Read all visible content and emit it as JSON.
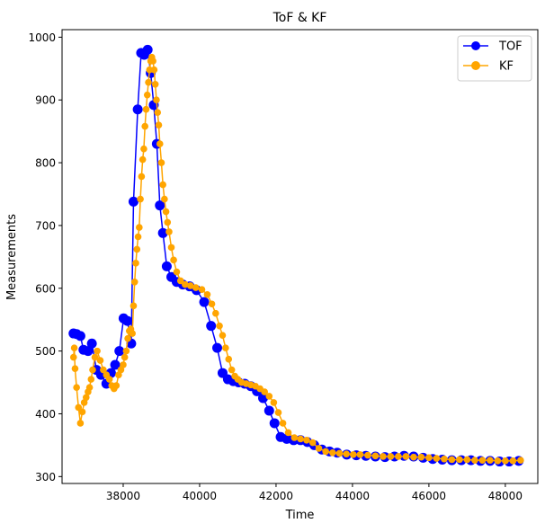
{
  "chart_data": {
    "type": "line",
    "title": "ToF & KF",
    "xlabel": "Time",
    "ylabel": "Measurements",
    "xlim": [
      36400,
      48850
    ],
    "ylim": [
      289,
      1012
    ],
    "xticks": [
      38000,
      40000,
      42000,
      44000,
      46000,
      48000
    ],
    "yticks": [
      300,
      400,
      500,
      600,
      700,
      800,
      900,
      1000
    ],
    "grid": false,
    "legend_position": "top-right",
    "series": [
      {
        "name": "TOF",
        "color": "#0000ff",
        "marker_radius": 5.5,
        "x": [
          36700,
          36780,
          36880,
          36960,
          37080,
          37180,
          37300,
          37420,
          37560,
          37680,
          37790,
          37900,
          38010,
          38110,
          38210,
          38270,
          38380,
          38470,
          38550,
          38640,
          38720,
          38800,
          38880,
          38960,
          39040,
          39140,
          39260,
          39400,
          39560,
          39740,
          39920,
          40120,
          40300,
          40460,
          40600,
          40740,
          40880,
          41020,
          41180,
          41340,
          41500,
          41660,
          41820,
          41960,
          42120,
          42280,
          42460,
          42640,
          42820,
          43000,
          43200,
          43400,
          43600,
          43850,
          44100,
          44350,
          44600,
          44850,
          45100,
          45350,
          45600,
          45850,
          46100,
          46350,
          46600,
          46850,
          47100,
          47350,
          47600,
          47850,
          48100,
          48350
        ],
        "y": [
          528,
          527,
          524,
          502,
          500,
          512,
          470,
          462,
          448,
          465,
          478,
          500,
          552,
          548,
          512,
          738,
          885,
          975,
          972,
          980,
          943,
          892,
          830,
          732,
          688,
          635,
          618,
          610,
          606,
          603,
          597,
          578,
          540,
          505,
          465,
          455,
          452,
          450,
          448,
          444,
          436,
          425,
          405,
          385,
          363,
          360,
          358,
          358,
          355,
          350,
          343,
          340,
          338,
          335,
          334,
          333,
          332,
          331,
          332,
          333,
          332,
          330,
          328,
          327,
          326,
          326,
          326,
          325,
          325,
          324,
          324,
          325
        ]
      },
      {
        "name": "KF",
        "color": "#ffa500",
        "marker_radius": 3.8,
        "x": [
          36700,
          36720,
          36740,
          36780,
          36830,
          36880,
          36930,
          36980,
          37030,
          37080,
          37120,
          37160,
          37200,
          37260,
          37320,
          37400,
          37480,
          37560,
          37640,
          37700,
          37760,
          37820,
          37880,
          37940,
          38000,
          38040,
          38080,
          38120,
          38160,
          38200,
          38240,
          38270,
          38300,
          38330,
          38360,
          38390,
          38420,
          38450,
          38480,
          38510,
          38540,
          38570,
          38600,
          38630,
          38660,
          38690,
          38720,
          38750,
          38780,
          38810,
          38840,
          38870,
          38900,
          38930,
          38960,
          39000,
          39040,
          39080,
          39120,
          39160,
          39200,
          39260,
          39320,
          39400,
          39500,
          39620,
          39760,
          39900,
          40060,
          40200,
          40320,
          40420,
          40520,
          40600,
          40680,
          40760,
          40840,
          40920,
          41000,
          41100,
          41220,
          41340,
          41460,
          41580,
          41700,
          41820,
          41940,
          42060,
          42180,
          42320,
          42480,
          42640,
          42800,
          42960,
          43120,
          43300,
          43480,
          43660,
          43840,
          44020,
          44200,
          44400,
          44600,
          44800,
          45000,
          45200,
          45400,
          45600,
          45800,
          46000,
          46200,
          46400,
          46600,
          46800,
          47000,
          47200,
          47400,
          47600,
          47800,
          48000,
          48200,
          48400
        ],
        "y": [
          490,
          505,
          472,
          442,
          410,
          385,
          403,
          418,
          426,
          435,
          442,
          455,
          470,
          490,
          500,
          485,
          470,
          462,
          455,
          445,
          440,
          445,
          462,
          470,
          478,
          490,
          500,
          520,
          532,
          535,
          528,
          572,
          610,
          640,
          662,
          682,
          697,
          742,
          778,
          805,
          822,
          858,
          885,
          908,
          928,
          948,
          962,
          968,
          962,
          948,
          925,
          900,
          880,
          860,
          830,
          800,
          765,
          742,
          722,
          705,
          690,
          665,
          645,
          626,
          612,
          606,
          604,
          601,
          598,
          590,
          575,
          560,
          540,
          525,
          505,
          487,
          470,
          460,
          455,
          450,
          448,
          446,
          444,
          440,
          435,
          428,
          418,
          402,
          385,
          370,
          362,
          360,
          358,
          354,
          345,
          340,
          338,
          337,
          336,
          335,
          335,
          334,
          333,
          332,
          332,
          332,
          332,
          331,
          331,
          330,
          329,
          328,
          327,
          327,
          327,
          326,
          326,
          326,
          325,
          325,
          325,
          326
        ]
      }
    ]
  }
}
